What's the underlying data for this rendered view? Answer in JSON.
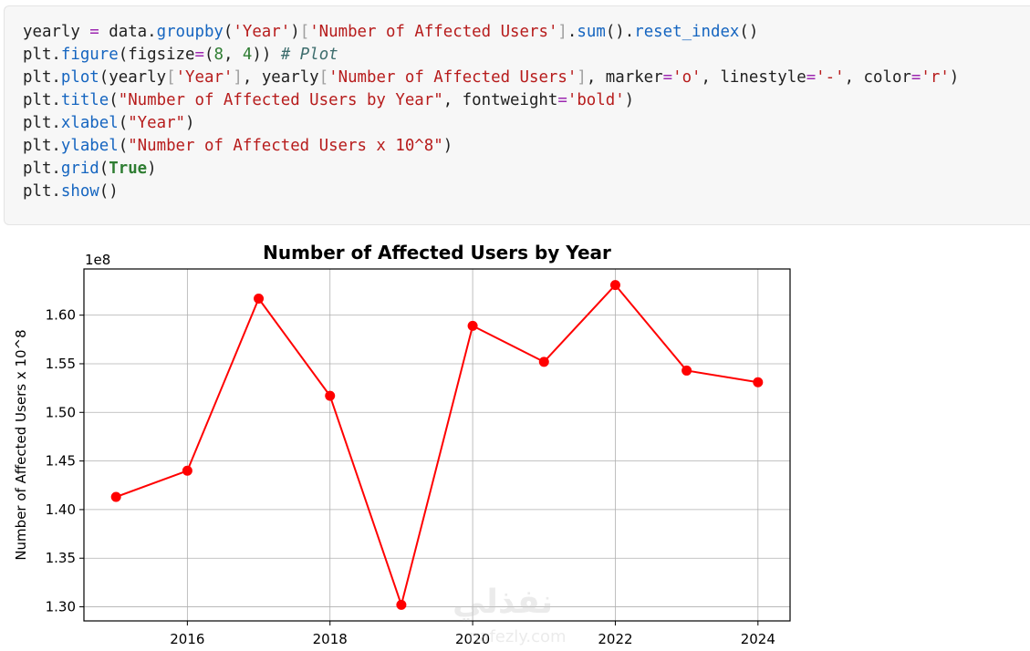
{
  "code_cell": {
    "lines": [
      [
        [
          "p",
          "yearly "
        ],
        [
          "o",
          "="
        ],
        [
          "p",
          " data."
        ],
        [
          "f",
          "groupby"
        ],
        [
          "p",
          "("
        ],
        [
          "s",
          "'Year'"
        ],
        [
          "p",
          ")"
        ],
        [
          "b",
          "["
        ],
        [
          "s",
          "'Number of Affected Users'"
        ],
        [
          "b",
          "]"
        ],
        [
          "p",
          "."
        ],
        [
          "f",
          "sum"
        ],
        [
          "p",
          "()."
        ],
        [
          "f",
          "reset_index"
        ],
        [
          "p",
          "()"
        ]
      ],
      [
        [
          "p",
          "plt."
        ],
        [
          "f",
          "figure"
        ],
        [
          "p",
          "(figsize"
        ],
        [
          "o",
          "="
        ],
        [
          "p",
          "("
        ],
        [
          "n",
          "8"
        ],
        [
          "p",
          ", "
        ],
        [
          "n",
          "4"
        ],
        [
          "p",
          "))"
        ],
        [
          "p",
          " "
        ],
        [
          "c",
          "# Plot"
        ]
      ],
      [
        [
          "p",
          "plt."
        ],
        [
          "f",
          "plot"
        ],
        [
          "p",
          "(yearly"
        ],
        [
          "b",
          "["
        ],
        [
          "s",
          "'Year'"
        ],
        [
          "b",
          "]"
        ],
        [
          "p",
          ", yearly"
        ],
        [
          "b",
          "["
        ],
        [
          "s",
          "'Number of Affected Users'"
        ],
        [
          "b",
          "]"
        ],
        [
          "p",
          ", marker"
        ],
        [
          "o",
          "="
        ],
        [
          "s",
          "'o'"
        ],
        [
          "p",
          ", linestyle"
        ],
        [
          "o",
          "="
        ],
        [
          "s",
          "'-'"
        ],
        [
          "p",
          ", color"
        ],
        [
          "o",
          "="
        ],
        [
          "s",
          "'r'"
        ],
        [
          "p",
          ")"
        ]
      ],
      [
        [
          "p",
          "plt."
        ],
        [
          "f",
          "title"
        ],
        [
          "p",
          "("
        ],
        [
          "s",
          "\"Number of Affected Users by Year\""
        ],
        [
          "p",
          ", fontweight"
        ],
        [
          "o",
          "="
        ],
        [
          "s",
          "'bold'"
        ],
        [
          "p",
          ")"
        ]
      ],
      [
        [
          "p",
          "plt."
        ],
        [
          "f",
          "xlabel"
        ],
        [
          "p",
          "("
        ],
        [
          "s",
          "\"Year\""
        ],
        [
          "p",
          ")"
        ]
      ],
      [
        [
          "p",
          "plt."
        ],
        [
          "f",
          "ylabel"
        ],
        [
          "p",
          "("
        ],
        [
          "s",
          "\"Number of Affected Users x 10^8\""
        ],
        [
          "p",
          ")"
        ]
      ],
      [
        [
          "p",
          "plt."
        ],
        [
          "f",
          "grid"
        ],
        [
          "p",
          "("
        ],
        [
          "k",
          "True"
        ],
        [
          "p",
          ")"
        ]
      ],
      [
        [
          "p",
          "plt."
        ],
        [
          "f",
          "show"
        ],
        [
          "p",
          "()"
        ]
      ]
    ]
  },
  "chart_data": {
    "type": "line",
    "title": "Number of Affected Users by Year",
    "xlabel": "",
    "ylabel": "Number of Affected Users x 10^8",
    "offset_text": "1e8",
    "x": [
      2015,
      2016,
      2017,
      2018,
      2019,
      2020,
      2021,
      2022,
      2023,
      2024
    ],
    "series": [
      {
        "values": [
          1.413,
          1.44,
          1.617,
          1.517,
          1.302,
          1.589,
          1.552,
          1.631,
          1.543,
          1.531
        ],
        "color": "#ff0000",
        "marker": "circle",
        "linestyle": "solid"
      }
    ],
    "xticks": [
      2016,
      2018,
      2020,
      2022,
      2024
    ],
    "xtick_labels": [
      "2016",
      "2018",
      "2020",
      "2022",
      "2024"
    ],
    "yticks": [
      1.3,
      1.35,
      1.4,
      1.45,
      1.5,
      1.55,
      1.6
    ],
    "ytick_labels": [
      "1.30",
      "1.35",
      "1.40",
      "1.45",
      "1.50",
      "1.55",
      "1.60"
    ],
    "xlim": [
      2014.55,
      2024.45
    ],
    "ylim": [
      1.2855,
      1.6475
    ],
    "grid": true
  },
  "watermark": {
    "arabic": "نفذلي",
    "latin": "nafezly.com"
  }
}
